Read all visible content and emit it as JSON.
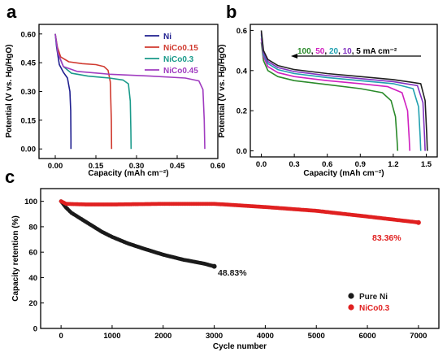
{
  "panel_labels": [
    "a",
    "b",
    "c"
  ],
  "chart_data": [
    {
      "type": "line",
      "panel": "a",
      "xlabel": "Capacity (mAh cm⁻²)",
      "ylabel": "Potential (V vs. Hg/HgO)",
      "xlim": [
        -0.06,
        0.6
      ],
      "ylim": [
        -0.05,
        0.65
      ],
      "xticks": [
        "0.00",
        "0.15",
        "0.30",
        "0.45",
        "0.60"
      ],
      "xtick_values": [
        0,
        0.15,
        0.3,
        0.45,
        0.6
      ],
      "yticks": [
        "0.00",
        "0.15",
        "0.30",
        "0.45",
        "0.60"
      ],
      "ytick_values": [
        0,
        0.15,
        0.3,
        0.45,
        0.6
      ],
      "legend_position": "top-right",
      "series": [
        {
          "name": "Ni",
          "color": "#1f1f8f",
          "x": [
            0,
            0.005,
            0.015,
            0.03,
            0.045,
            0.054,
            0.057,
            0.058,
            0.058
          ],
          "y": [
            0.6,
            0.53,
            0.44,
            0.4,
            0.37,
            0.3,
            0.2,
            0.05,
            0.0
          ]
        },
        {
          "name": "NiCo0.15",
          "color": "#d03a2f",
          "x": [
            0,
            0.008,
            0.02,
            0.05,
            0.1,
            0.15,
            0.18,
            0.195,
            0.203,
            0.207,
            0.208
          ],
          "y": [
            0.6,
            0.53,
            0.48,
            0.455,
            0.445,
            0.44,
            0.43,
            0.41,
            0.35,
            0.15,
            0.0
          ]
        },
        {
          "name": "NiCo0.3",
          "color": "#1a9a8a",
          "x": [
            0,
            0.01,
            0.03,
            0.06,
            0.12,
            0.2,
            0.25,
            0.27,
            0.277,
            0.279,
            0.28
          ],
          "y": [
            0.6,
            0.5,
            0.43,
            0.395,
            0.38,
            0.37,
            0.36,
            0.34,
            0.25,
            0.1,
            0.0
          ]
        },
        {
          "name": "NiCo0.45",
          "color": "#a03cc0",
          "x": [
            0,
            0.01,
            0.03,
            0.08,
            0.2,
            0.35,
            0.48,
            0.53,
            0.545,
            0.55,
            0.552
          ],
          "y": [
            0.6,
            0.5,
            0.43,
            0.405,
            0.39,
            0.38,
            0.37,
            0.355,
            0.31,
            0.15,
            0.0
          ]
        }
      ]
    },
    {
      "type": "line",
      "panel": "b",
      "xlabel": "Capacity (mAh cm⁻²)",
      "ylabel": "Potential (V vs. Hg/HgO)",
      "xlim": [
        -0.1,
        1.6
      ],
      "ylim": [
        -0.03,
        0.63
      ],
      "xticks": [
        "0.0",
        "0.3",
        "0.6",
        "0.9",
        "1.2",
        "1.5"
      ],
      "xtick_values": [
        0,
        0.3,
        0.6,
        0.9,
        1.2,
        1.5
      ],
      "yticks": [
        "0.0",
        "0.2",
        "0.4",
        "0.6"
      ],
      "ytick_values": [
        0,
        0.2,
        0.4,
        0.6
      ],
      "annotation": {
        "parts": [
          {
            "text": "100",
            "color": "#2a8a2a"
          },
          {
            "text": ", ",
            "color": "#000000"
          },
          {
            "text": "50",
            "color": "#d020c0"
          },
          {
            "text": ", ",
            "color": "#000000"
          },
          {
            "text": "20",
            "color": "#20a0b0"
          },
          {
            "text": ", ",
            "color": "#000000"
          },
          {
            "text": "10",
            "color": "#8030c0"
          },
          {
            "text": ", 5 mA cm⁻²",
            "color": "#000000"
          }
        ]
      },
      "series": [
        {
          "name": "100",
          "color": "#2a8a2a",
          "x": [
            0,
            0.02,
            0.06,
            0.15,
            0.3,
            0.6,
            0.9,
            1.1,
            1.18,
            1.22,
            1.235,
            1.24
          ],
          "y": [
            0.54,
            0.45,
            0.4,
            0.37,
            0.35,
            0.33,
            0.31,
            0.29,
            0.25,
            0.17,
            0.05,
            0.0
          ]
        },
        {
          "name": "50",
          "color": "#d020c0",
          "x": [
            0,
            0.02,
            0.06,
            0.15,
            0.3,
            0.6,
            0.9,
            1.15,
            1.28,
            1.33,
            1.345,
            1.35
          ],
          "y": [
            0.56,
            0.47,
            0.42,
            0.39,
            0.37,
            0.35,
            0.335,
            0.32,
            0.29,
            0.2,
            0.06,
            0.0
          ]
        },
        {
          "name": "20",
          "color": "#20a0b0",
          "x": [
            0,
            0.02,
            0.06,
            0.15,
            0.3,
            0.6,
            0.9,
            1.2,
            1.38,
            1.43,
            1.445,
            1.45
          ],
          "y": [
            0.58,
            0.48,
            0.435,
            0.405,
            0.385,
            0.365,
            0.35,
            0.335,
            0.31,
            0.22,
            0.07,
            0.0
          ]
        },
        {
          "name": "10",
          "color": "#8030c0",
          "x": [
            0,
            0.02,
            0.06,
            0.15,
            0.3,
            0.6,
            0.9,
            1.2,
            1.42,
            1.47,
            1.485,
            1.49
          ],
          "y": [
            0.59,
            0.49,
            0.445,
            0.415,
            0.395,
            0.375,
            0.36,
            0.345,
            0.325,
            0.24,
            0.07,
            0.0
          ]
        },
        {
          "name": "5",
          "color": "#202020",
          "x": [
            0,
            0.02,
            0.06,
            0.15,
            0.3,
            0.6,
            0.9,
            1.2,
            1.45,
            1.49,
            1.505,
            1.51
          ],
          "y": [
            0.6,
            0.5,
            0.455,
            0.425,
            0.405,
            0.385,
            0.37,
            0.355,
            0.335,
            0.25,
            0.08,
            0.0
          ]
        }
      ]
    },
    {
      "type": "scatter",
      "panel": "c",
      "xlabel": "Cycle number",
      "ylabel": "Capacity retention (%)",
      "xlim": [
        -400,
        7400
      ],
      "ylim": [
        0,
        110
      ],
      "xticks": [
        "0",
        "1000",
        "2000",
        "3000",
        "4000",
        "5000",
        "6000",
        "7000"
      ],
      "xtick_values": [
        0,
        1000,
        2000,
        3000,
        4000,
        5000,
        6000,
        7000
      ],
      "yticks": [
        "0",
        "20",
        "40",
        "60",
        "80",
        "100"
      ],
      "ytick_values": [
        0,
        20,
        40,
        60,
        80,
        100
      ],
      "legend_position": "bottom-right",
      "series": [
        {
          "name": "Pure Ni",
          "color": "#1a1a1a",
          "x": [
            0,
            100,
            200,
            400,
            600,
            800,
            1000,
            1300,
            1600,
            2000,
            2400,
            2800,
            3000
          ],
          "y": [
            100,
            95,
            91,
            86,
            81,
            76,
            72,
            67,
            63,
            58,
            54,
            51,
            48.83
          ]
        },
        {
          "name": "NiCo0.3",
          "color": "#e02020",
          "x": [
            0,
            100,
            500,
            1000,
            2000,
            3000,
            4000,
            5000,
            6000,
            7000
          ],
          "y": [
            100,
            98,
            97.5,
            97.5,
            98,
            98,
            95.5,
            92.5,
            88,
            83.36
          ]
        }
      ],
      "annotations": [
        {
          "text": "48.83%",
          "color": "#1a1a1a"
        },
        {
          "text": "83.36%",
          "color": "#e02020"
        }
      ]
    }
  ]
}
